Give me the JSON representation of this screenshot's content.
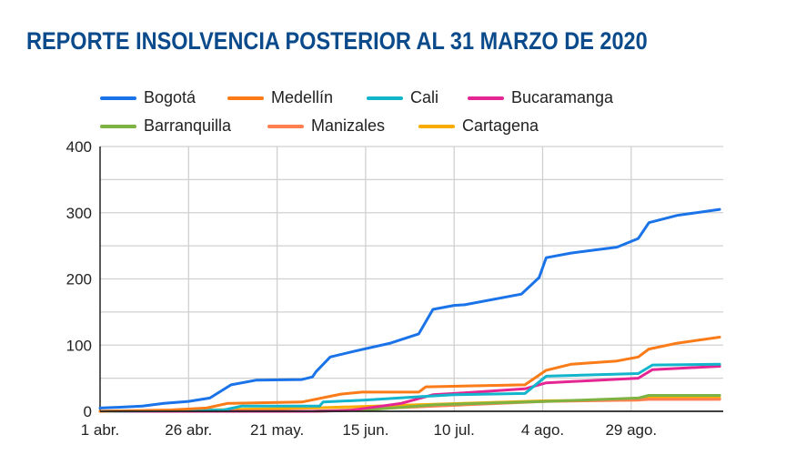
{
  "chart_data": {
    "type": "line",
    "title": "REPORTE INSOLVENCIA POSTERIOR AL 31 MARZO DE 2020",
    "xlabel": "",
    "ylabel": "",
    "x_unit": "days since 1 abr. 2020",
    "xlim": [
      0,
      176
    ],
    "ylim": [
      0,
      400
    ],
    "yticks": [
      "0",
      "100",
      "200",
      "300",
      "400"
    ],
    "ytick_values": [
      0,
      100,
      200,
      300,
      400
    ],
    "xticks": [
      "1 abr.",
      "26 abr.",
      "21 may.",
      "15 jun.",
      "10 jul.",
      "4 ago.",
      "29 ago."
    ],
    "xtick_values": [
      0,
      25,
      50,
      75,
      100,
      125,
      150
    ],
    "grid": true,
    "legend_position": "top",
    "series": [
      {
        "name": "Bogotá",
        "color": "#1a73e8",
        "x": [
          0,
          5,
          12,
          18,
          25,
          31,
          37,
          44,
          57,
          60,
          61,
          65,
          72,
          82,
          90,
          94,
          100,
          103,
          119,
          124,
          126,
          133,
          146,
          152,
          155,
          163,
          175
        ],
        "y": [
          5,
          6,
          8,
          12,
          15,
          20,
          40,
          47,
          48,
          52,
          60,
          82,
          91,
          103,
          117,
          154,
          160,
          161,
          177,
          202,
          232,
          239,
          248,
          261,
          285,
          296,
          305
        ]
      },
      {
        "name": "Medellín",
        "color": "#fa7b17",
        "x": [
          0,
          20,
          30,
          36,
          57,
          68,
          74,
          90,
          92,
          120,
          126,
          133,
          146,
          152,
          155,
          163,
          175
        ],
        "y": [
          0,
          2,
          5,
          12,
          14,
          26,
          29,
          29,
          37,
          40,
          62,
          71,
          76,
          82,
          94,
          103,
          112
        ]
      },
      {
        "name": "Cali",
        "color": "#12b5cb",
        "x": [
          0,
          20,
          35,
          40,
          62,
          63,
          75,
          90,
          100,
          120,
          126,
          152,
          156,
          175
        ],
        "y": [
          0,
          1,
          2,
          8,
          8,
          14,
          17,
          22,
          25,
          27,
          53,
          57,
          70,
          71
        ]
      },
      {
        "name": "Bucaramanga",
        "color": "#e52592",
        "x": [
          0,
          60,
          70,
          85,
          94,
          100,
          120,
          126,
          152,
          156,
          175
        ],
        "y": [
          0,
          0,
          1,
          12,
          25,
          27,
          34,
          43,
          50,
          63,
          68
        ]
      },
      {
        "name": "Barranquilla",
        "color": "#7cb342",
        "x": [
          0,
          60,
          75,
          95,
          126,
          152,
          155,
          175
        ],
        "y": [
          0,
          0,
          2,
          10,
          15,
          20,
          24,
          24
        ]
      },
      {
        "name": "Manizales",
        "color": "#ff7f50",
        "x": [
          0,
          60,
          70,
          95,
          126,
          152,
          155,
          175
        ],
        "y": [
          0,
          0,
          2,
          8,
          15,
          17,
          18,
          18
        ]
      },
      {
        "name": "Cartagena",
        "color": "#f9ab00",
        "x": [
          0,
          30,
          60,
          90,
          126,
          152,
          155,
          175
        ],
        "y": [
          0,
          2,
          5,
          10,
          16,
          17,
          20,
          20
        ]
      }
    ]
  }
}
